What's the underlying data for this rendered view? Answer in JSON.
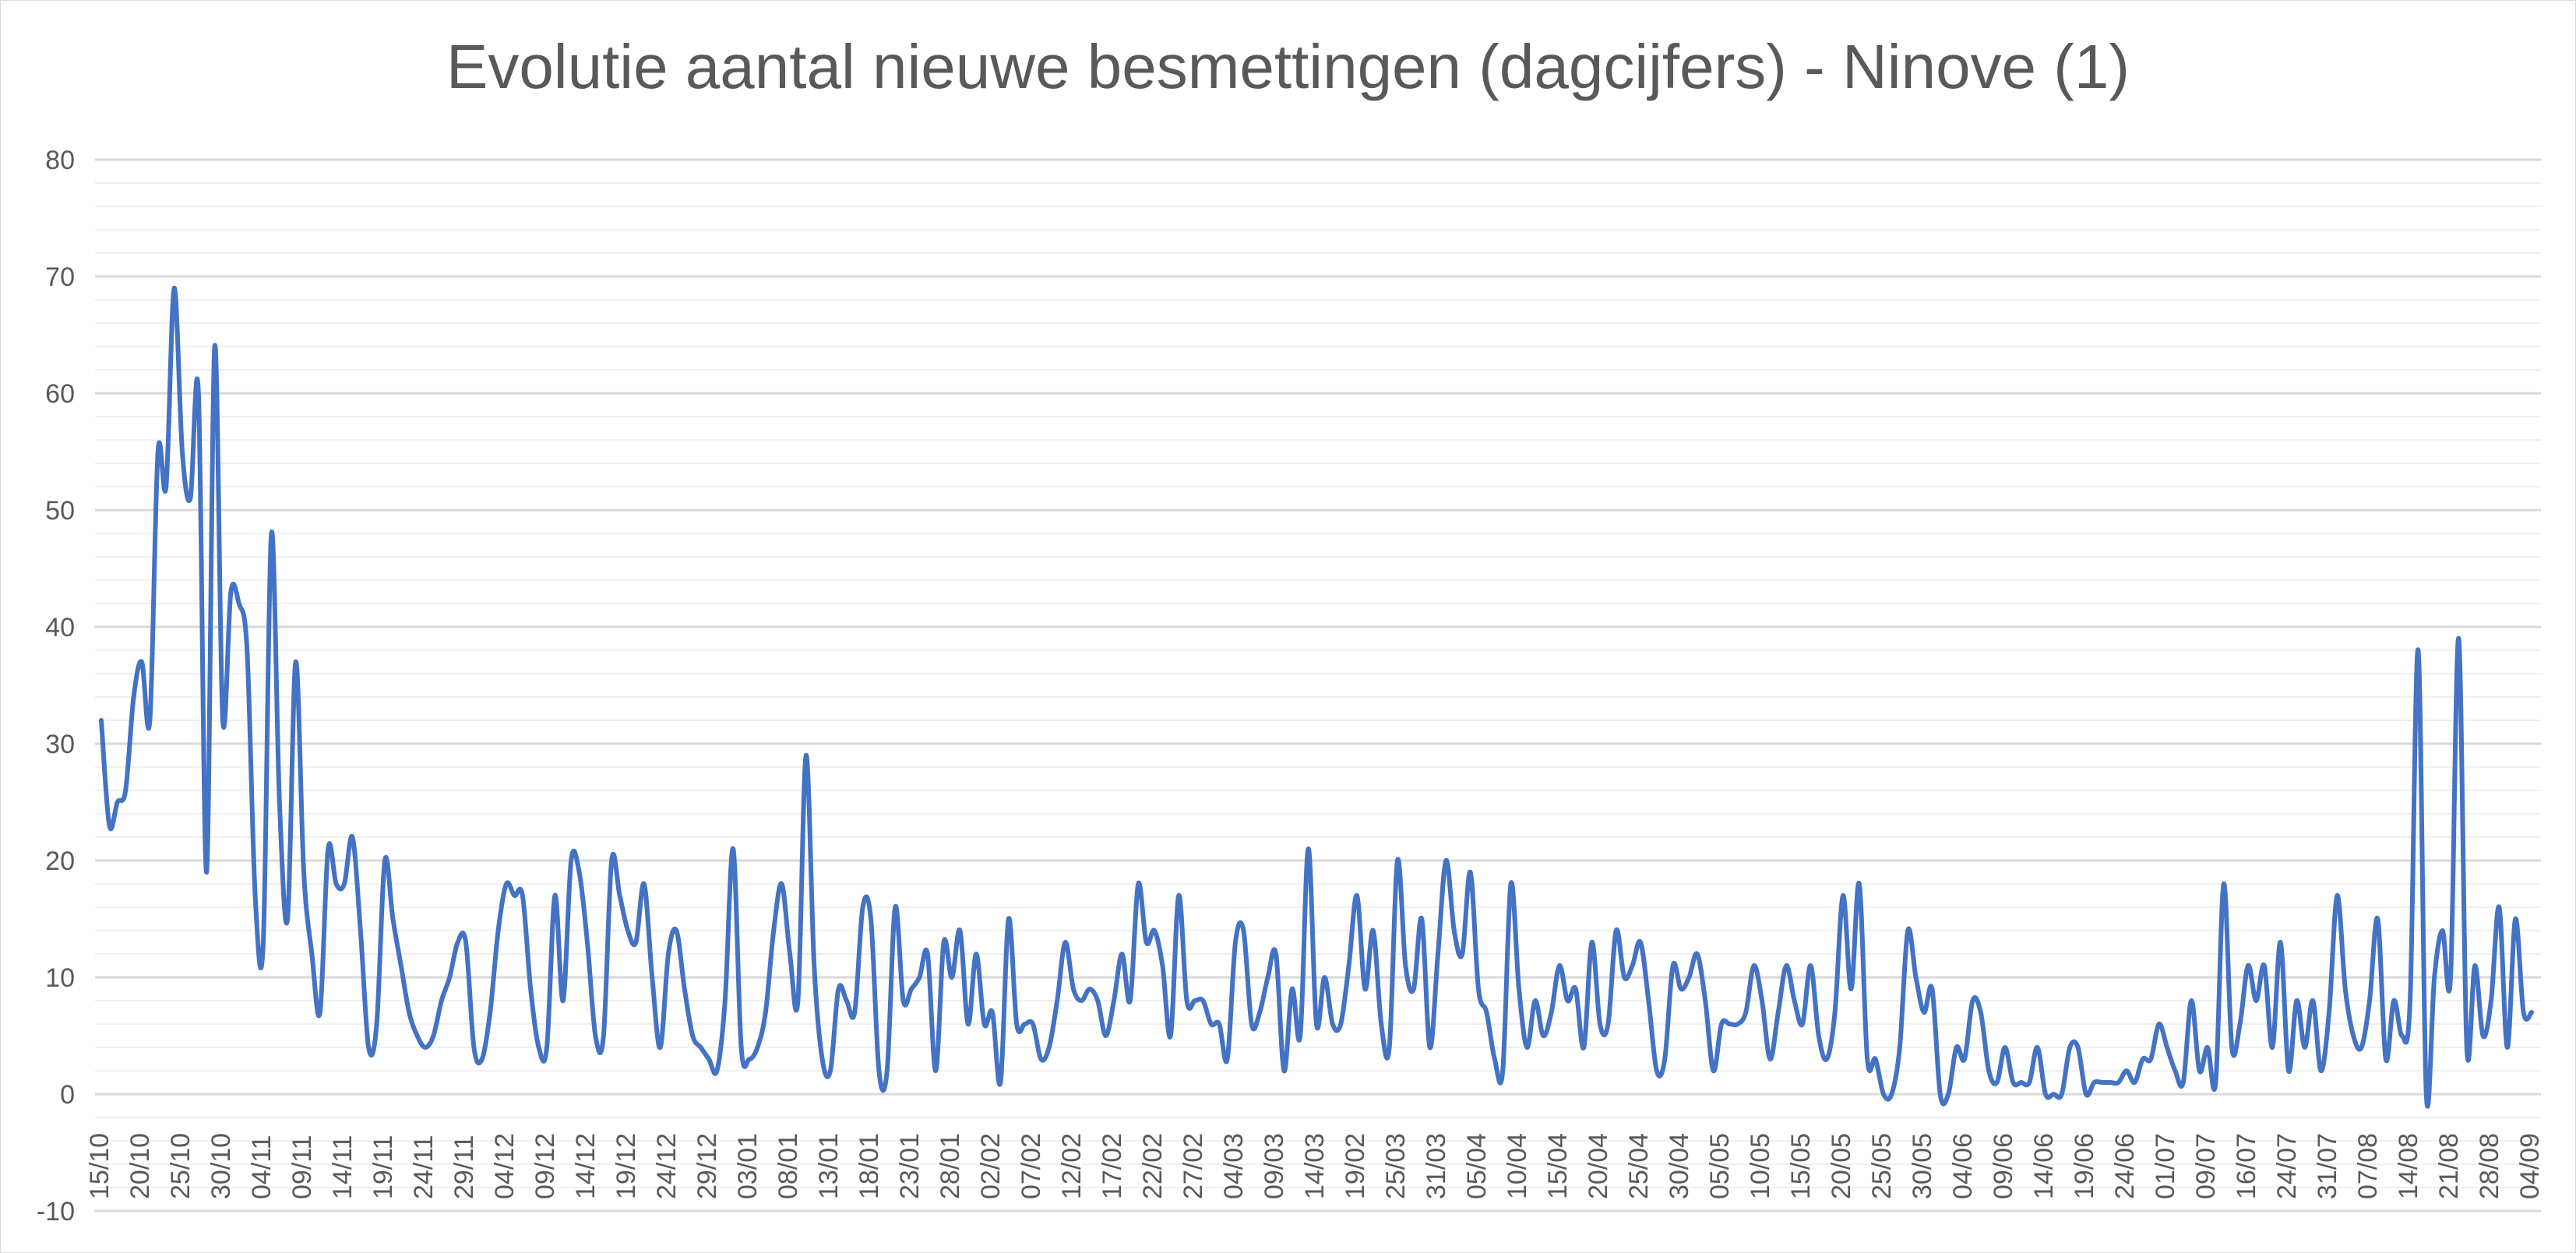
{
  "chart_data": {
    "type": "line",
    "title": "Evolutie aantal nieuwe besmettingen (dagcijfers) - Ninove (1)",
    "xlabel": "",
    "ylabel": "",
    "ylim": [
      -10,
      80
    ],
    "y_ticks": [
      -10,
      0,
      10,
      20,
      30,
      40,
      50,
      60,
      70,
      80
    ],
    "grid": {
      "major": true,
      "minor": true
    },
    "smoothed": true,
    "line_color": "#4472C4",
    "x_tick_labels": [
      "15/10",
      "20/10",
      "25/10",
      "30/10",
      "04/11",
      "09/11",
      "14/11",
      "19/11",
      "24/11",
      "29/11",
      "04/12",
      "09/12",
      "14/12",
      "19/12",
      "24/12",
      "29/12",
      "03/01",
      "08/01",
      "13/01",
      "18/01",
      "23/01",
      "28/01",
      "02/02",
      "07/02",
      "12/02",
      "17/02",
      "22/02",
      "27/02",
      "04/03",
      "09/03",
      "14/03",
      "19/02",
      "25/03",
      "31/03",
      "05/04",
      "10/04",
      "15/04",
      "20/04",
      "25/04",
      "30/04",
      "05/05",
      "10/05",
      "15/05",
      "20/05",
      "25/05",
      "30/05",
      "04/06",
      "09/06",
      "14/06",
      "19/06",
      "24/06",
      "01/07",
      "09/07",
      "16/07",
      "24/07",
      "31/07",
      "07/08",
      "14/08",
      "21/08",
      "28/08",
      "04/09"
    ],
    "x_tick_every_n_points": 5,
    "series": [
      {
        "values": [
          32,
          23,
          25,
          26,
          34,
          37,
          32,
          55,
          52,
          69,
          55,
          51,
          60,
          19,
          64,
          32,
          43,
          42,
          38,
          17,
          13,
          48,
          25,
          15,
          37,
          19,
          12,
          7,
          21,
          18,
          18,
          22,
          14,
          4,
          6,
          20,
          15,
          11,
          7,
          5,
          4,
          5,
          8,
          10,
          13,
          13,
          4,
          3,
          7,
          14,
          18,
          17,
          17,
          9,
          4,
          4,
          17,
          8,
          20,
          19,
          13,
          5,
          5,
          20,
          17,
          14,
          13,
          18,
          10,
          4,
          12,
          14,
          9,
          5,
          4,
          3,
          2,
          8,
          21,
          4,
          3,
          4,
          7,
          14,
          18,
          12,
          8,
          29,
          11,
          3,
          2,
          9,
          8,
          7,
          16,
          15,
          2,
          2,
          16,
          8,
          9,
          10,
          12,
          2,
          13,
          10,
          14,
          6,
          12,
          6,
          7,
          1,
          15,
          6,
          6,
          6,
          3,
          4,
          8,
          13,
          9,
          8,
          9,
          8,
          5,
          8,
          12,
          8,
          18,
          13,
          14,
          11,
          5,
          17,
          8,
          8,
          8,
          6,
          6,
          3,
          13,
          14,
          6,
          7,
          10,
          12,
          2,
          9,
          5,
          21,
          6,
          10,
          6,
          6,
          11,
          17,
          9,
          14,
          6,
          4,
          20,
          11,
          9,
          15,
          4,
          12,
          20,
          14,
          12,
          19,
          9,
          7,
          3,
          2,
          18,
          9,
          4,
          8,
          5,
          7,
          11,
          8,
          9,
          4,
          13,
          6,
          6,
          14,
          10,
          11,
          13,
          8,
          2,
          3,
          11,
          9,
          10,
          12,
          8,
          2,
          6,
          6,
          6,
          7,
          11,
          8,
          3,
          7,
          11,
          8,
          6,
          11,
          5,
          3,
          7,
          17,
          9,
          18,
          3,
          3,
          0,
          0,
          4,
          14,
          10,
          7,
          9,
          0,
          0,
          4,
          3,
          8,
          7,
          2,
          1,
          4,
          1,
          1,
          1,
          4,
          0,
          0,
          0,
          4,
          4,
          0,
          1,
          1,
          1,
          1,
          2,
          1,
          3,
          3,
          6,
          4,
          2,
          1,
          8,
          2,
          4,
          1,
          18,
          4,
          6,
          11,
          8,
          11,
          4,
          13,
          2,
          8,
          4,
          8,
          2,
          7,
          17,
          9,
          5,
          4,
          8,
          15,
          3,
          8,
          5,
          8,
          38,
          0,
          10,
          14,
          10,
          39,
          4,
          11,
          5,
          8,
          16,
          4,
          15,
          7,
          7
        ]
      }
    ]
  }
}
